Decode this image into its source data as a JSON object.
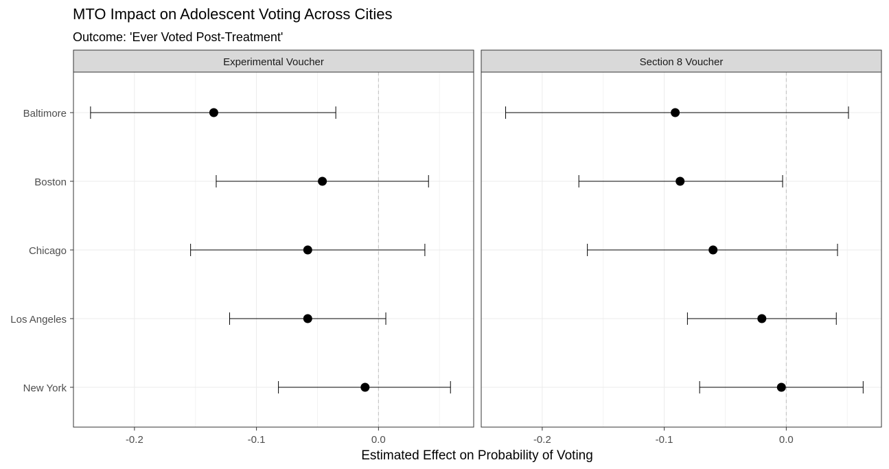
{
  "chart_data": {
    "type": "scatter",
    "subtype": "point-range",
    "title": "MTO Impact on Adolescent Voting Across Cities",
    "subtitle": "Outcome: 'Ever Voted Post-Treatment'",
    "xlabel": "Estimated Effect on Probability of Voting",
    "ylabel": "",
    "categories": [
      "Baltimore",
      "Boston",
      "Chicago",
      "Los Angeles",
      "New York"
    ],
    "xlim": [
      -0.25,
      0.078
    ],
    "xticks": [
      -0.2,
      -0.1,
      0.0
    ],
    "xtick_labels": [
      "-0.2",
      "-0.1",
      "0.0"
    ],
    "reference_line": 0.0,
    "grid": true,
    "facets": [
      {
        "name": "Experimental Voucher",
        "estimates": [
          -0.135,
          -0.046,
          -0.058,
          -0.058,
          -0.011
        ],
        "lower": [
          -0.236,
          -0.133,
          -0.154,
          -0.122,
          -0.082
        ],
        "upper": [
          -0.035,
          0.041,
          0.038,
          0.006,
          0.059
        ]
      },
      {
        "name": "Section 8 Voucher",
        "estimates": [
          -0.091,
          -0.087,
          -0.06,
          -0.02,
          -0.004
        ],
        "lower": [
          -0.23,
          -0.17,
          -0.163,
          -0.081,
          -0.071
        ],
        "upper": [
          0.051,
          -0.003,
          0.042,
          0.041,
          0.063
        ]
      }
    ]
  }
}
